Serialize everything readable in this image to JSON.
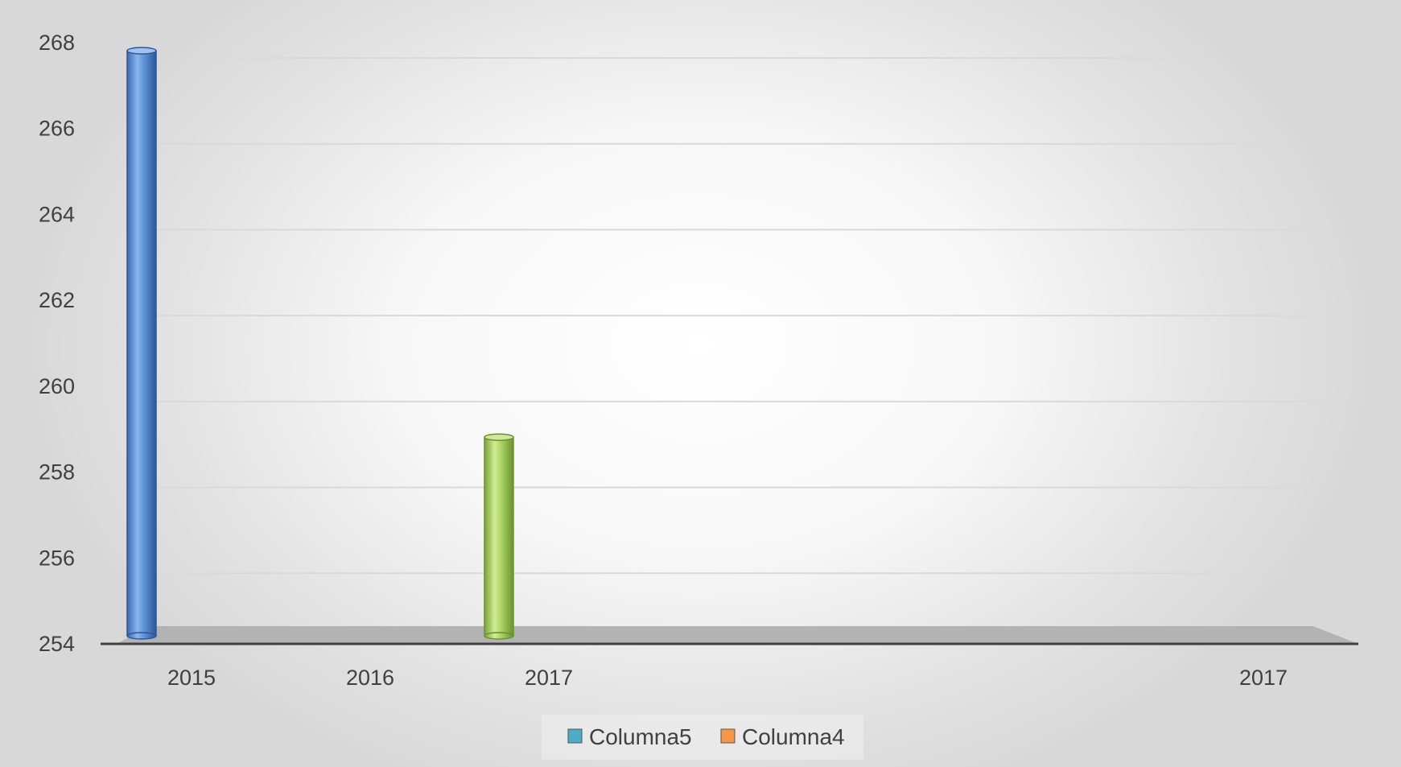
{
  "chart_data": {
    "type": "bar",
    "style": "3d-cylinder",
    "categories": [
      "2015",
      "2016",
      "2017",
      "",
      "",
      "",
      "2017"
    ],
    "x_tick_labels": [
      "2015",
      "2016",
      "2017",
      "2017"
    ],
    "bars": [
      {
        "category": "2015",
        "value": 268,
        "color": "#5b8fd6"
      },
      {
        "category": "2017",
        "value": 259,
        "color": "#a6d160"
      }
    ],
    "ylim": [
      254,
      268
    ],
    "y_ticks": [
      254,
      256,
      258,
      260,
      262,
      264,
      266,
      268
    ],
    "grid": true,
    "legend_position": "bottom",
    "legend": [
      {
        "name": "Columna5",
        "color": "#4bacc6"
      },
      {
        "name": "Columna4",
        "color": "#f79646"
      }
    ],
    "title": "",
    "xlabel": "",
    "ylabel": ""
  }
}
